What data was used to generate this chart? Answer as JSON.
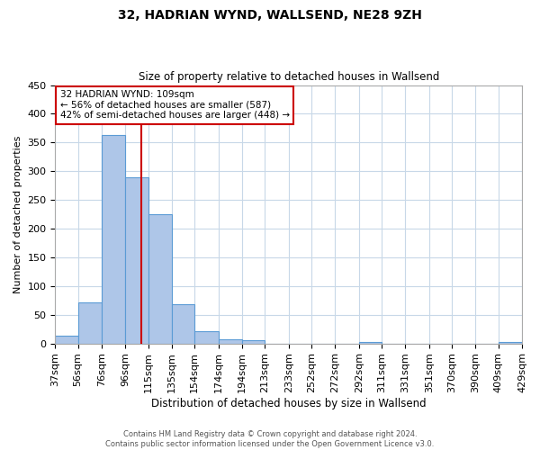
{
  "title": "32, HADRIAN WYND, WALLSEND, NE28 9ZH",
  "subtitle": "Size of property relative to detached houses in Wallsend",
  "xlabel": "Distribution of detached houses by size in Wallsend",
  "ylabel": "Number of detached properties",
  "bin_edges": [
    37,
    56,
    76,
    96,
    115,
    135,
    154,
    174,
    194,
    213,
    233,
    252,
    272,
    292,
    311,
    331,
    351,
    370,
    390,
    409,
    429
  ],
  "bin_labels": [
    "37sqm",
    "56sqm",
    "76sqm",
    "96sqm",
    "115sqm",
    "135sqm",
    "154sqm",
    "174sqm",
    "194sqm",
    "213sqm",
    "233sqm",
    "252sqm",
    "272sqm",
    "292sqm",
    "311sqm",
    "331sqm",
    "351sqm",
    "370sqm",
    "390sqm",
    "409sqm",
    "429sqm"
  ],
  "counts": [
    13,
    72,
    363,
    289,
    225,
    68,
    21,
    7,
    6,
    0,
    0,
    0,
    0,
    2,
    0,
    0,
    0,
    0,
    0,
    3
  ],
  "bar_color": "#aec6e8",
  "bar_edge_color": "#5b9bd5",
  "property_value": 109,
  "vline_color": "#cc0000",
  "annotation_line1": "32 HADRIAN WYND: 109sqm",
  "annotation_line2": "← 56% of detached houses are smaller (587)",
  "annotation_line3": "42% of semi-detached houses are larger (448) →",
  "annotation_box_color": "#ffffff",
  "annotation_box_edge_color": "#cc0000",
  "ylim": [
    0,
    450
  ],
  "yticks": [
    0,
    50,
    100,
    150,
    200,
    250,
    300,
    350,
    400,
    450
  ],
  "background_color": "#ffffff",
  "grid_color": "#c8d8e8",
  "footer_text": "Contains HM Land Registry data © Crown copyright and database right 2024.\nContains public sector information licensed under the Open Government Licence v3.0."
}
